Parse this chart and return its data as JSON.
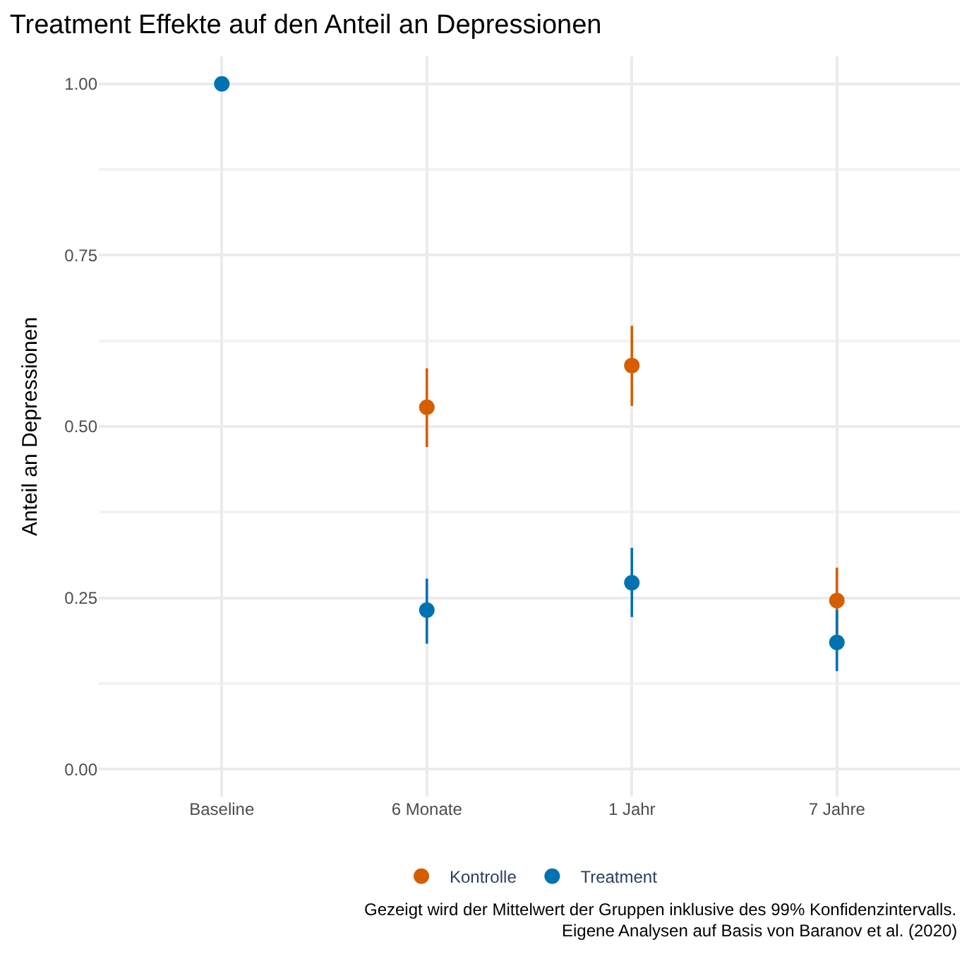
{
  "chart_data": {
    "type": "scatter",
    "title": "Treatment Effekte auf den Anteil an Depressionen",
    "ylabel": "Anteil an Depressionen",
    "categories": [
      "Baseline",
      "6 Monate",
      "1 Jahr",
      "7 Jahre"
    ],
    "series": [
      {
        "name": "Kontrolle",
        "color": "#d55e00",
        "values": [
          null,
          0.528,
          0.589,
          0.246
        ],
        "errors": [
          null,
          [
            0.47,
            0.585
          ],
          [
            0.53,
            0.647
          ],
          [
            0.198,
            0.294
          ]
        ]
      },
      {
        "name": "Treatment",
        "color": "#0072b2",
        "values": [
          1.0,
          0.232,
          0.272,
          0.185
        ],
        "errors": [
          null,
          [
            0.183,
            0.278
          ],
          [
            0.222,
            0.323
          ],
          [
            0.143,
            0.232
          ]
        ]
      }
    ],
    "ylim": [
      -0.04,
      1.04
    ],
    "yticks": [
      {
        "value": 0,
        "label": "0.00"
      },
      {
        "value": 0.25,
        "label": "0.25"
      },
      {
        "value": 0.5,
        "label": "0.50"
      },
      {
        "value": 0.75,
        "label": "0.75"
      },
      {
        "value": 1,
        "label": "1.00"
      }
    ],
    "grid": true,
    "legend": "bottom",
    "marker": "circle",
    "annotations": [
      "Gezeigt wird der Mittelwert der Gruppen inklusive des 99% Konfidenzintervalls.",
      "Eigene Analysen auf Basis von Baranov et al. (2020)"
    ]
  }
}
